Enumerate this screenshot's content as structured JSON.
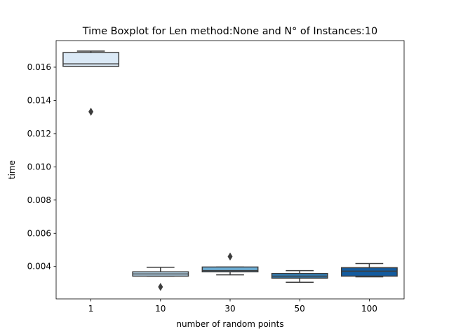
{
  "chart_data": {
    "type": "boxplot",
    "title": "Time Boxplot for Len method:None and N° of Instances:10",
    "xlabel": "number of random points",
    "ylabel": "time",
    "ylim": [
      0.00205,
      0.0176
    ],
    "yticks": [
      "0.004",
      "0.006",
      "0.008",
      "0.010",
      "0.012",
      "0.014",
      "0.016"
    ],
    "categories": [
      "1",
      "10",
      "30",
      "50",
      "100"
    ],
    "colors": [
      "#dbe9f6",
      "#b5d4e9",
      "#6daed5",
      "#3182bd",
      "#135b9f"
    ],
    "boxes": [
      {
        "category": "1",
        "whisker_low": 0.01605,
        "q1": 0.01605,
        "median": 0.0162,
        "q3": 0.01688,
        "whisker_high": 0.01697,
        "outliers": [
          0.01332
        ]
      },
      {
        "category": "10",
        "whisker_low": 0.00342,
        "q1": 0.00342,
        "median": 0.00355,
        "q3": 0.00368,
        "whisker_high": 0.00395,
        "outliers": [
          0.00277
        ]
      },
      {
        "category": "30",
        "whisker_low": 0.0035,
        "q1": 0.00368,
        "median": 0.00375,
        "q3": 0.00397,
        "whisker_high": 0.00397,
        "outliers": [
          0.0046
        ]
      },
      {
        "category": "50",
        "whisker_low": 0.00305,
        "q1": 0.0033,
        "median": 0.00342,
        "q3": 0.00358,
        "whisker_high": 0.00375,
        "outliers": []
      },
      {
        "category": "100",
        "whisker_low": 0.00338,
        "q1": 0.00342,
        "median": 0.00372,
        "q3": 0.00393,
        "whisker_high": 0.00418,
        "outliers": []
      }
    ]
  }
}
